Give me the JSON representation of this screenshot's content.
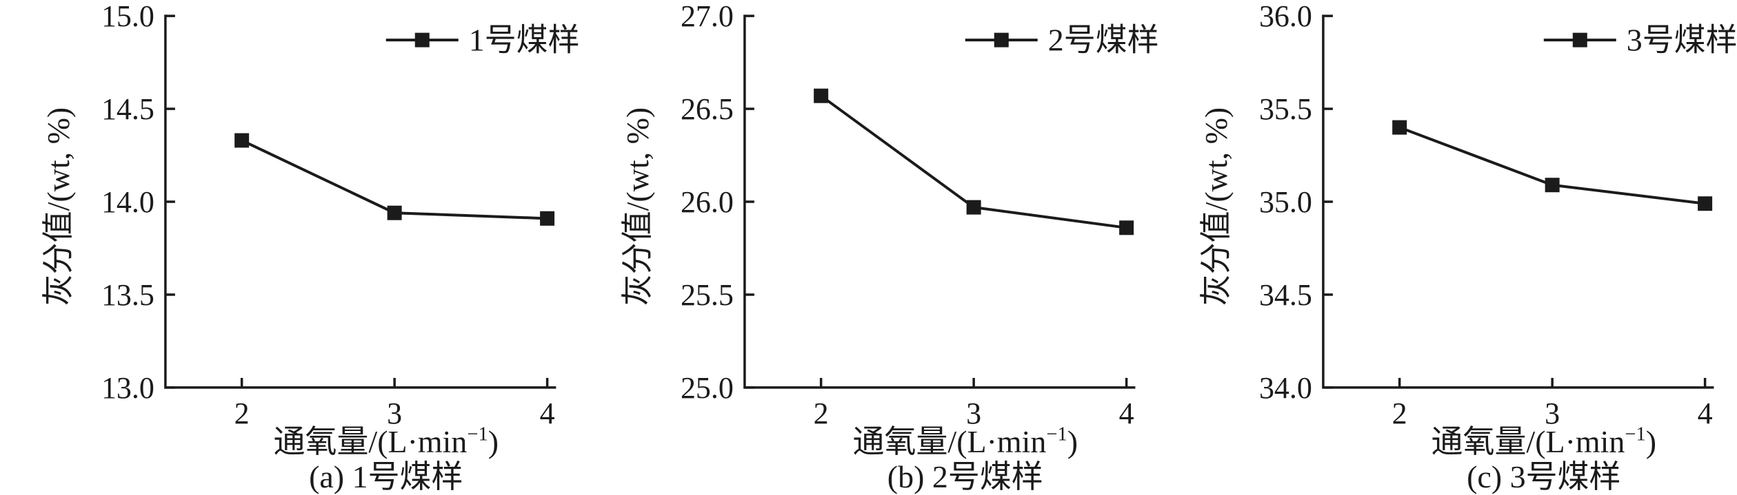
{
  "figure": {
    "background": "#ffffff"
  },
  "style": {
    "ink_color": "#1b1b1b",
    "axis_stroke_width": 3.5,
    "line_stroke_width": 4,
    "marker_size": 21,
    "tick_font_size": 44,
    "label_font_size": 46
  },
  "chart_data": [
    {
      "type": "line",
      "caption": "(a) 1号煤样",
      "legend": "1号煤样",
      "legend_position": "top-right",
      "xlabel": "通氧量/(L·min⁻¹)",
      "ylabel": "灰分值/(wt, %)",
      "x": [
        2,
        3,
        4
      ],
      "values": [
        14.33,
        13.94,
        13.91
      ],
      "xlim": [
        1.5,
        4.05
      ],
      "ylim": [
        13.0,
        15.0
      ],
      "xticks": [
        "2",
        "3",
        "4"
      ],
      "yticks": [
        "13.0",
        "13.5",
        "14.0",
        "14.5",
        "15.0"
      ],
      "grid": false,
      "marker": "square"
    },
    {
      "type": "line",
      "caption": "(b) 2号煤样",
      "legend": "2号煤样",
      "legend_position": "top-right",
      "xlabel": "通氧量/(L·min⁻¹)",
      "ylabel": "灰分值/(wt, %)",
      "x": [
        2,
        3,
        4
      ],
      "values": [
        26.57,
        25.97,
        25.86
      ],
      "xlim": [
        1.5,
        4.05
      ],
      "ylim": [
        25.0,
        27.0
      ],
      "xticks": [
        "2",
        "3",
        "4"
      ],
      "yticks": [
        "25.0",
        "25.5",
        "26.0",
        "26.5",
        "27.0"
      ],
      "grid": false,
      "marker": "square"
    },
    {
      "type": "line",
      "caption": "(c) 3号煤样",
      "legend": "3号煤样",
      "legend_position": "top-right",
      "xlabel": "通氧量/(L·min⁻¹)",
      "ylabel": "灰分值/(wt, %)",
      "x": [
        2,
        3,
        4
      ],
      "values": [
        35.4,
        35.09,
        34.99
      ],
      "xlim": [
        1.5,
        4.05
      ],
      "ylim": [
        34.0,
        36.0
      ],
      "xticks": [
        "2",
        "3",
        "4"
      ],
      "yticks": [
        "34.0",
        "34.5",
        "35.0",
        "35.5",
        "36.0"
      ],
      "grid": false,
      "marker": "square"
    }
  ]
}
